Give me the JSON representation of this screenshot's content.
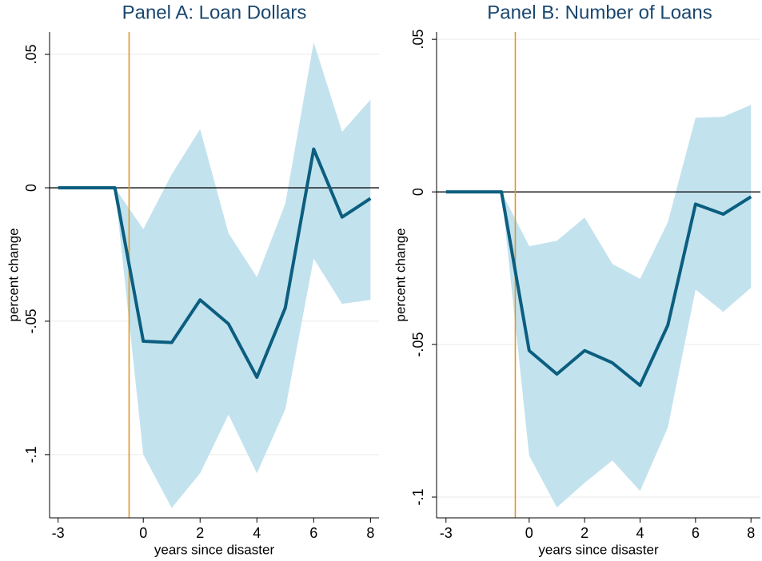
{
  "chart_data": [
    {
      "type": "line",
      "title": "Panel A: Loan Dollars",
      "xlabel": "years since disaster",
      "ylabel": "percent change",
      "x": [
        -3,
        -2,
        -1,
        0,
        1,
        2,
        3,
        4,
        5,
        6,
        7,
        8
      ],
      "values": [
        0,
        0,
        0,
        -0.0575,
        -0.058,
        -0.042,
        -0.051,
        -0.071,
        -0.045,
        0.0145,
        -0.011,
        -0.004
      ],
      "band_upper": [
        null,
        null,
        0,
        -0.0155,
        0.005,
        0.022,
        -0.017,
        -0.0335,
        -0.006,
        0.0545,
        0.021,
        0.033
      ],
      "band_lower": [
        null,
        null,
        0,
        -0.1,
        -0.12,
        -0.107,
        -0.085,
        -0.107,
        -0.083,
        -0.0265,
        -0.0435,
        -0.042
      ],
      "color": "#0b5e7f",
      "band_color": "#c2e2ee",
      "event_x": -0.5,
      "event_color": "#e0962a",
      "hline": 0,
      "xlim": [
        -3.3,
        8.3
      ],
      "ylim": [
        -0.1237,
        0.0584
      ],
      "xticks": [
        -3,
        0,
        2,
        4,
        6,
        8
      ],
      "yticks": [
        {
          "value": 0.05,
          "label": ".05"
        },
        0,
        {
          "value": -0.05,
          "label": "-.05"
        },
        {
          "value": -0.1,
          "label": "-.1"
        }
      ],
      "grid": true
    },
    {
      "type": "line",
      "title": "Panel B: Number of Loans",
      "xlabel": "years since disaster",
      "ylabel": "percent change",
      "x": [
        -3,
        -2,
        -1,
        0,
        1,
        2,
        3,
        4,
        5,
        6,
        7,
        8
      ],
      "values": [
        0,
        0,
        0,
        -0.052,
        -0.0597,
        -0.052,
        -0.056,
        -0.0634,
        -0.0437,
        -0.004,
        -0.0073,
        -0.0016
      ],
      "band_upper": [
        null,
        null,
        0,
        -0.0178,
        -0.016,
        -0.0084,
        -0.0236,
        -0.0285,
        -0.01,
        0.0243,
        0.0246,
        0.0285
      ],
      "band_lower": [
        null,
        null,
        0,
        -0.0864,
        -0.1034,
        -0.0953,
        -0.088,
        -0.098,
        -0.0772,
        -0.032,
        -0.0393,
        -0.0314
      ],
      "color": "#0b5e7f",
      "band_color": "#c2e2ee",
      "event_x": -0.5,
      "event_color": "#e0962a",
      "hline": 0,
      "xlim": [
        -3.34,
        8.34
      ],
      "ylim": [
        -0.1068,
        0.0524
      ],
      "xticks": [
        -3,
        0,
        2,
        4,
        6,
        8
      ],
      "yticks": [
        {
          "value": 0.05,
          "label": ".05"
        },
        0,
        {
          "value": -0.05,
          "label": "-.05"
        },
        {
          "value": -0.1,
          "label": "-.1"
        }
      ],
      "grid": true
    }
  ]
}
